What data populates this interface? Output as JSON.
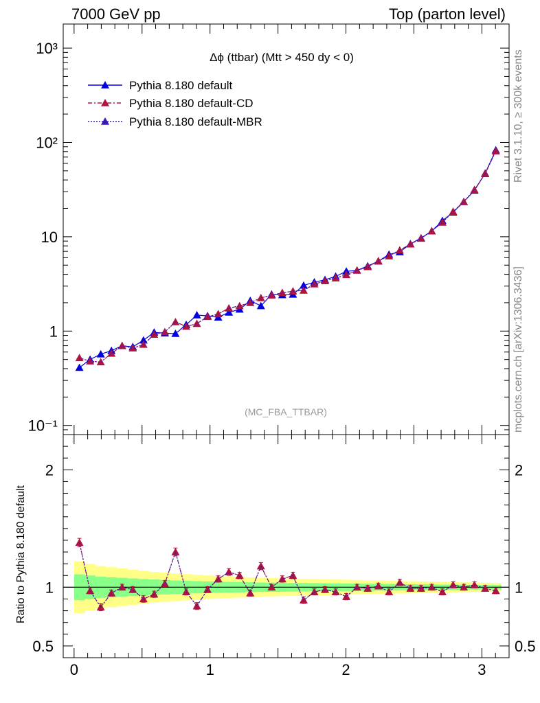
{
  "header": {
    "left": "7000 GeV pp",
    "right": "Top (parton level)"
  },
  "side": {
    "rivet": "Rivet 3.1.10, ≥ 300k events",
    "mcplots": "mcplots.cern.ch [arXiv:1306.3436]"
  },
  "colors": {
    "default": "#0000e0",
    "cd": "#b0133f",
    "mbr": "#3a1ab0",
    "band_yellow": "#ffff88",
    "band_green": "#88ff88"
  },
  "chart_data": [
    {
      "type": "line",
      "title": "Δϕ (ttbar) (Mtt > 450 dy < 0)",
      "watermark": "(MC_FBA_TTBAR)",
      "yscale": "log",
      "xlim": [
        -0.08,
        3.2
      ],
      "ylim": [
        0.08,
        1800
      ],
      "ytick_labels": [
        "10⁻¹",
        "1",
        "10",
        "10²",
        "10³"
      ],
      "legend_position": "top-left",
      "x": [
        0.0393,
        0.1178,
        0.1963,
        0.2749,
        0.3534,
        0.432,
        0.5105,
        0.589,
        0.6676,
        0.7461,
        0.8247,
        0.9032,
        0.9817,
        1.0603,
        1.1388,
        1.2174,
        1.2959,
        1.3744,
        1.453,
        1.5315,
        1.6101,
        1.6886,
        1.7671,
        1.8457,
        1.9242,
        2.0028,
        2.0813,
        2.1598,
        2.2384,
        2.3169,
        2.3955,
        2.474,
        2.5525,
        2.6311,
        2.7096,
        2.7882,
        2.8667,
        2.9452,
        3.0238,
        3.1023
      ],
      "series": [
        {
          "name": "Pythia 8.180 default",
          "line": "solid",
          "values": [
            0.41,
            0.5,
            0.57,
            0.62,
            0.7,
            0.68,
            0.8,
            0.97,
            0.95,
            0.94,
            1.17,
            1.48,
            1.45,
            1.4,
            1.58,
            1.7,
            2.1,
            1.85,
            2.45,
            2.42,
            2.45,
            3.05,
            3.3,
            3.5,
            3.8,
            4.3,
            4.4,
            4.9,
            5.5,
            6.5,
            6.9,
            8.4,
            9.7,
            11.5,
            14.8,
            18.2,
            23.5,
            31.0,
            47.0,
            83.0
          ]
        },
        {
          "name": "Pythia 8.180 default-CD",
          "line": "dash-dot",
          "values": [
            0.52,
            0.48,
            0.47,
            0.58,
            0.7,
            0.66,
            0.72,
            0.92,
            0.98,
            1.25,
            1.12,
            1.2,
            1.42,
            1.52,
            1.75,
            1.85,
            2.0,
            2.25,
            2.4,
            2.55,
            2.65,
            2.7,
            3.15,
            3.4,
            3.65,
            3.95,
            4.4,
            4.8,
            5.55,
            6.25,
            7.2,
            8.35,
            9.6,
            11.5,
            14.2,
            18.5,
            23.5,
            31.5,
            46.5,
            81.0
          ]
        },
        {
          "name": "Pythia 8.180 default-MBR",
          "line": "dotted",
          "values": [
            0.52,
            0.48,
            0.47,
            0.58,
            0.7,
            0.66,
            0.72,
            0.92,
            0.98,
            1.25,
            1.12,
            1.2,
            1.42,
            1.52,
            1.75,
            1.85,
            2.0,
            2.25,
            2.4,
            2.55,
            2.65,
            2.7,
            3.15,
            3.4,
            3.65,
            3.95,
            4.4,
            4.8,
            5.55,
            6.25,
            7.2,
            8.35,
            9.6,
            11.5,
            14.2,
            18.5,
            23.5,
            31.5,
            46.5,
            81.0
          ]
        }
      ]
    },
    {
      "type": "line",
      "ylabel": "Ratio to Pythia 8.180 default",
      "xlim": [
        -0.08,
        3.2
      ],
      "ylim": [
        0.4,
        2.3
      ],
      "xtick_labels": [
        "0",
        "1",
        "2",
        "3"
      ],
      "ytick_labels": [
        "0.5",
        "1",
        "2"
      ],
      "x": [
        0.0393,
        0.1178,
        0.1963,
        0.2749,
        0.3534,
        0.432,
        0.5105,
        0.589,
        0.6676,
        0.7461,
        0.8247,
        0.9032,
        0.9817,
        1.0603,
        1.1388,
        1.2174,
        1.2959,
        1.3744,
        1.453,
        1.5315,
        1.6101,
        1.6886,
        1.7671,
        1.8457,
        1.9242,
        2.0028,
        2.0813,
        2.1598,
        2.2384,
        2.3169,
        2.3955,
        2.474,
        2.5525,
        2.6311,
        2.7096,
        2.7882,
        2.8667,
        2.9452,
        3.0238,
        3.1023
      ],
      "band_green_halfwidth": [
        0.11,
        0.1,
        0.09,
        0.085,
        0.08,
        0.075,
        0.07,
        0.066,
        0.062,
        0.058,
        0.055,
        0.052,
        0.05,
        0.048,
        0.046,
        0.044,
        0.042,
        0.04,
        0.039,
        0.038,
        0.037,
        0.036,
        0.035,
        0.034,
        0.033,
        0.032,
        0.031,
        0.03,
        0.029,
        0.028,
        0.027,
        0.026,
        0.025,
        0.024,
        0.023,
        0.022,
        0.021,
        0.02,
        0.019,
        0.018
      ],
      "band_yellow_halfwidth": [
        0.22,
        0.2,
        0.18,
        0.17,
        0.16,
        0.15,
        0.14,
        0.13,
        0.124,
        0.118,
        0.112,
        0.106,
        0.1,
        0.096,
        0.092,
        0.088,
        0.084,
        0.08,
        0.078,
        0.076,
        0.074,
        0.072,
        0.07,
        0.068,
        0.066,
        0.064,
        0.062,
        0.06,
        0.058,
        0.056,
        0.054,
        0.052,
        0.05,
        0.048,
        0.046,
        0.044,
        0.042,
        0.04,
        0.038,
        0.036
      ],
      "series": [
        {
          "name": "Pythia 8.180 default-CD",
          "values": [
            1.38,
            0.97,
            0.83,
            0.95,
            1.0,
            0.98,
            0.9,
            0.94,
            1.03,
            1.3,
            0.96,
            0.84,
            0.98,
            1.07,
            1.13,
            1.1,
            0.95,
            1.18,
            1.0,
            1.07,
            1.1,
            0.89,
            0.96,
            0.98,
            0.96,
            0.92,
            1.0,
            0.99,
            1.01,
            0.96,
            1.04,
            0.99,
            0.99,
            1.0,
            0.96,
            1.02,
            1.0,
            1.02,
            0.99,
            0.97
          ]
        },
        {
          "name": "Pythia 8.180 default-MBR",
          "values": [
            1.38,
            0.97,
            0.83,
            0.95,
            1.0,
            0.98,
            0.9,
            0.94,
            1.03,
            1.3,
            0.96,
            0.84,
            0.98,
            1.07,
            1.13,
            1.1,
            0.95,
            1.18,
            1.0,
            1.07,
            1.1,
            0.89,
            0.96,
            0.98,
            0.96,
            0.92,
            1.0,
            0.99,
            1.01,
            0.96,
            1.04,
            0.99,
            0.99,
            1.0,
            0.96,
            1.02,
            1.0,
            1.02,
            0.99,
            0.97
          ]
        }
      ]
    }
  ]
}
